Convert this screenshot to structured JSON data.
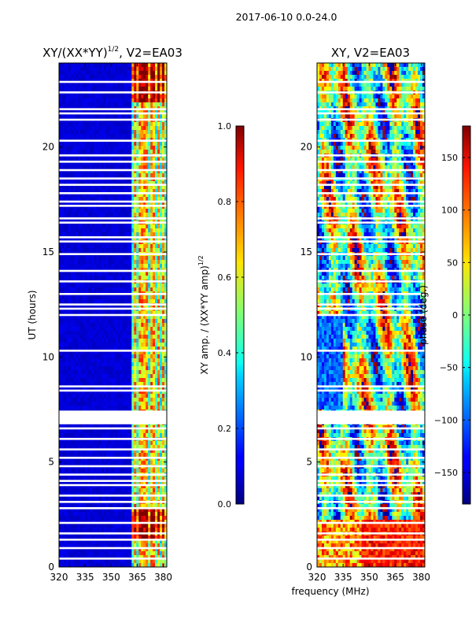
{
  "figure_title": "2017-06-10 0.0-24.0",
  "shared_xlabel": "frequency (MHz)",
  "chart_data": [
    {
      "type": "heatmap",
      "title": "XY/(XX*YY)",
      "title_exponent": "1/2",
      "title_suffix": ", V2=EA03",
      "xlabel": "",
      "ylabel": "UT (hours)",
      "x_ticks": [
        "320",
        "335",
        "350",
        "365",
        "380"
      ],
      "x_tick_values": [
        320,
        335,
        350,
        365,
        380
      ],
      "xlim": [
        320,
        382
      ],
      "y_ticks": [
        "0",
        "5",
        "10",
        "15",
        "20"
      ],
      "y_tick_values": [
        0,
        5,
        10,
        15,
        20
      ],
      "ylim": [
        0,
        24
      ],
      "colormap": "jet",
      "colorbar": {
        "label": "XY amp. / (XX*YY amp)",
        "label_exponent": "1/2",
        "range": [
          0.0,
          1.0
        ],
        "ticks": [
          "0.0",
          "0.2",
          "0.4",
          "0.6",
          "0.8",
          "1.0"
        ],
        "tick_values": [
          0.0,
          0.2,
          0.4,
          0.6,
          0.8,
          1.0
        ]
      },
      "bright_columns_mhz": [
        364,
        367,
        370,
        374,
        377,
        380
      ],
      "flagged_rows_ut": [
        0.4,
        0.9,
        1.3,
        1.6,
        2.1,
        2.8,
        3.1,
        3.4,
        3.9,
        4.1,
        4.4,
        4.8,
        5.2,
        5.6,
        6.1,
        6.6,
        6.85,
        7.0,
        7.2,
        7.4,
        8.4,
        8.6,
        10.3,
        12.0,
        12.3,
        12.5,
        13.0,
        13.6,
        14.1,
        14.9,
        15.5,
        15.7,
        16.4,
        16.6,
        17.2,
        17.4,
        17.8,
        18.2,
        18.5,
        18.9,
        19.3,
        19.6,
        20.3,
        21.3,
        21.6,
        21.8,
        22.6,
        23.1
      ]
    },
    {
      "type": "heatmap",
      "title": "XY, V2=EA03",
      "xlabel": "frequency (MHz)",
      "ylabel": "",
      "x_ticks": [
        "320",
        "335",
        "350",
        "365",
        "380"
      ],
      "x_tick_values": [
        320,
        335,
        350,
        365,
        380
      ],
      "xlim": [
        320,
        382
      ],
      "y_ticks": [
        "0",
        "5",
        "10",
        "15",
        "20"
      ],
      "y_tick_values": [
        0,
        5,
        10,
        15,
        20
      ],
      "ylim": [
        0,
        24
      ],
      "colormap": "jet",
      "colorbar": {
        "label": "phase (deg.)",
        "range": [
          -180,
          180
        ],
        "ticks": [
          "−150",
          "−100",
          "−50",
          "0",
          "50",
          "100",
          "150"
        ],
        "tick_values": [
          -150,
          -100,
          -50,
          0,
          50,
          100,
          150
        ]
      },
      "flagged_rows_ut": [
        0.4,
        0.9,
        1.3,
        1.6,
        2.1,
        2.8,
        3.1,
        3.4,
        3.9,
        4.1,
        4.4,
        4.8,
        5.2,
        5.6,
        6.1,
        6.6,
        6.85,
        7.0,
        7.2,
        7.4,
        8.4,
        8.6,
        10.3,
        12.0,
        12.3,
        12.5,
        13.0,
        13.6,
        14.1,
        14.9,
        15.5,
        15.7,
        16.4,
        16.6,
        17.2,
        17.4,
        17.8,
        18.2,
        18.5,
        18.9,
        19.3,
        19.6,
        20.3,
        21.3,
        21.6,
        21.8,
        22.6,
        23.1
      ]
    }
  ]
}
